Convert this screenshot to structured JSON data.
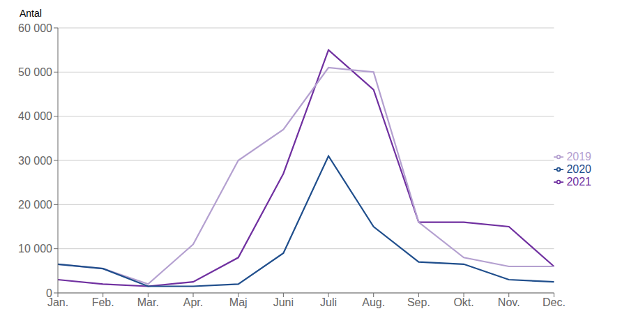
{
  "chart_data": {
    "type": "line",
    "ylabel": "Antal",
    "categories": [
      "Jan.",
      "Feb.",
      "Mar.",
      "Apr.",
      "Maj",
      "Juni",
      "Juli",
      "Aug.",
      "Sep.",
      "Okt.",
      "Nov.",
      "Dec."
    ],
    "series": [
      {
        "name": "2021",
        "color": "#7030A0",
        "values": [
          3000,
          2000,
          1500,
          2500,
          8000,
          27000,
          55000,
          46000,
          16000,
          16000,
          15000,
          6000
        ]
      },
      {
        "name": "2019",
        "color": "#B4A0D0",
        "values": [
          6500,
          5500,
          2000,
          11000,
          30000,
          37000,
          51000,
          50000,
          16000,
          8000,
          6000,
          6000
        ]
      },
      {
        "name": "2020",
        "color": "#1F4E8C",
        "values": [
          6500,
          5500,
          1500,
          1500,
          2000,
          9000,
          31000,
          15000,
          7000,
          6500,
          3000,
          2500
        ]
      }
    ],
    "ylim": [
      0,
      60000
    ],
    "yticks": [
      0,
      {
        "value": 10000,
        "label": "10 000"
      },
      {
        "value": 20000,
        "label": "20 000"
      },
      {
        "value": 30000,
        "label": "30 000"
      },
      {
        "value": 40000,
        "label": "40 000"
      },
      {
        "value": 50000,
        "label": "50 000"
      },
      {
        "value": 60000,
        "label": "60 000"
      }
    ],
    "grid": true,
    "legend": "right"
  }
}
